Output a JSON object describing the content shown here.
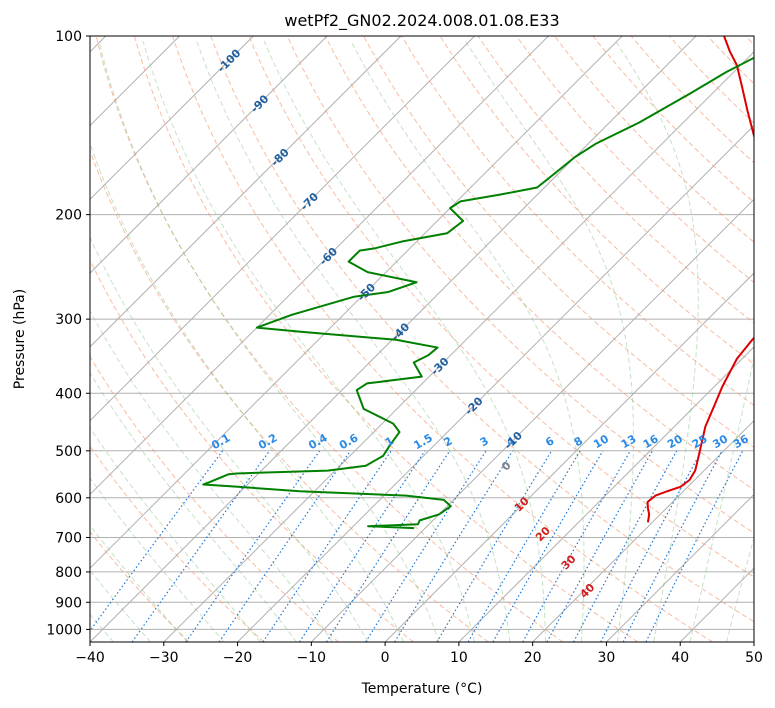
{
  "chart_data": {
    "type": "line",
    "subtype": "skew-t log-p diagram",
    "title": "wetPf2_GN02.2024.008.01.08.E33",
    "xlabel": "Temperature (°C)",
    "ylabel": "Pressure (hPa)",
    "xlim": [
      -40,
      50
    ],
    "ylim": [
      1050,
      100
    ],
    "y_scale": "log",
    "x_ticks": [
      "−40",
      "−30",
      "−20",
      "−10",
      "0",
      "10",
      "20",
      "30",
      "40",
      "50"
    ],
    "y_ticks": [
      "100",
      "200",
      "300",
      "400",
      "500",
      "600",
      "700",
      "800",
      "900",
      "1000"
    ],
    "grid": true,
    "series": [
      {
        "color": "#dd0000",
        "points": [
          [
            19.4,
            660
          ],
          [
            18.5,
            640
          ],
          [
            17.5,
            625
          ],
          [
            16.6,
            610
          ],
          [
            16.8,
            595
          ],
          [
            17.8,
            585
          ],
          [
            19.0,
            575
          ],
          [
            19.3,
            560
          ],
          [
            18.8,
            540
          ],
          [
            17.8,
            520
          ],
          [
            16.2,
            490
          ],
          [
            14.2,
            455
          ],
          [
            12.6,
            420
          ],
          [
            11.1,
            390
          ],
          [
            9.3,
            350
          ],
          [
            8.8,
            325
          ],
          [
            8.7,
            310
          ],
          [
            7.5,
            290
          ],
          [
            4.7,
            265
          ],
          [
            3.3,
            250
          ],
          [
            1.3,
            235
          ],
          [
            -1.3,
            220
          ],
          [
            -3.9,
            200
          ],
          [
            -6.8,
            185
          ],
          [
            -11.8,
            170
          ],
          [
            -15.5,
            158
          ],
          [
            -19.3,
            145
          ],
          [
            -23.1,
            133
          ],
          [
            -26.8,
            122
          ],
          [
            -30.5,
            112
          ],
          [
            -33.4,
            106
          ],
          [
            -36.2,
            100
          ]
        ]
      },
      {
        "color": "#008000",
        "points": [
          [
            -11.5,
            675
          ],
          [
            -18.0,
            670
          ],
          [
            -11.5,
            665
          ],
          [
            -11.8,
            655
          ],
          [
            -10.0,
            640
          ],
          [
            -9.5,
            620
          ],
          [
            -11.3,
            605
          ],
          [
            -17.0,
            595
          ],
          [
            -32.0,
            585
          ],
          [
            -41.0,
            575
          ],
          [
            -46.0,
            570
          ],
          [
            -45.5,
            565
          ],
          [
            -44.0,
            548
          ],
          [
            -43.0,
            546
          ],
          [
            -31.0,
            540
          ],
          [
            -26.5,
            530
          ],
          [
            -25.5,
            510
          ],
          [
            -26.0,
            490
          ],
          [
            -26.5,
            465
          ],
          [
            -28.5,
            450
          ],
          [
            -34.5,
            425
          ],
          [
            -38.0,
            395
          ],
          [
            -37.5,
            385
          ],
          [
            -31.0,
            375
          ],
          [
            -34.0,
            355
          ],
          [
            -33.0,
            345
          ],
          [
            -32.8,
            335
          ],
          [
            -39.5,
            325
          ],
          [
            -53.5,
            315
          ],
          [
            -60.0,
            310
          ],
          [
            -57.0,
            295
          ],
          [
            -51.0,
            275
          ],
          [
            -47.0,
            270
          ],
          [
            -44.5,
            260
          ],
          [
            -52.5,
            250
          ],
          [
            -56.5,
            240
          ],
          [
            -56.5,
            230
          ],
          [
            -54.8,
            228
          ],
          [
            -52.0,
            222
          ],
          [
            -47.0,
            215
          ],
          [
            -46.5,
            205
          ],
          [
            -50.0,
            195
          ],
          [
            -49.5,
            190
          ],
          [
            -45.0,
            185
          ],
          [
            -41.0,
            180
          ],
          [
            -40.5,
            170
          ],
          [
            -40.0,
            160
          ],
          [
            -39.0,
            152
          ],
          [
            -36.0,
            140
          ],
          [
            -33.0,
            125
          ],
          [
            -31.0,
            115
          ],
          [
            -28.0,
            105
          ],
          [
            -26.5,
            100
          ]
        ]
      }
    ],
    "dry_adiabat_labels": [
      {
        "text": "-100",
        "t": -100,
        "p": 110
      },
      {
        "text": "-90",
        "t": -90,
        "p": 130
      },
      {
        "text": "-80",
        "t": -80,
        "p": 160
      },
      {
        "text": "-70",
        "t": -70,
        "p": 190
      },
      {
        "text": "-60",
        "t": -60,
        "p": 235
      },
      {
        "text": "-50",
        "t": -50,
        "p": 270
      },
      {
        "text": "-40",
        "t": -40,
        "p": 315
      },
      {
        "text": "-30",
        "t": -30,
        "p": 360
      },
      {
        "text": "-20",
        "t": -20,
        "p": 420
      },
      {
        "text": "-10",
        "t": -10,
        "p": 480
      }
    ],
    "moist_adiabat_labels": [
      {
        "text": "0",
        "t": -7.5,
        "p": 530
      },
      {
        "text": "10",
        "t": -0.2,
        "p": 615
      },
      {
        "text": "20",
        "t": 6.7,
        "p": 690
      },
      {
        "text": "30",
        "t": 14.0,
        "p": 770
      },
      {
        "text": "40",
        "t": 20.4,
        "p": 860
      }
    ],
    "mixing_ratio_labels": [
      {
        "text": "0.1",
        "t": -44.9
      },
      {
        "text": "0.2",
        "t": -38.6
      },
      {
        "text": "0.4",
        "t": -31.9
      },
      {
        "text": "0.6",
        "t": -27.7
      },
      {
        "text": "1",
        "t": -22.2
      },
      {
        "text": "1.5",
        "t": -17.6
      },
      {
        "text": "2",
        "t": -14.6
      },
      {
        "text": "3",
        "t": -10.0
      },
      {
        "text": "4",
        "t": -6.5
      },
      {
        "text": "6",
        "t": -1.9
      },
      {
        "text": "8",
        "t": 1.8
      },
      {
        "text": "10",
        "t": 5.0
      },
      {
        "text": "13",
        "t": 8.6
      },
      {
        "text": "16",
        "t": 11.5
      },
      {
        "text": "20",
        "t": 14.6
      },
      {
        "text": "25",
        "t": 17.9
      },
      {
        "text": "30",
        "t": 20.4
      },
      {
        "text": "36",
        "t": 22.8
      }
    ]
  }
}
